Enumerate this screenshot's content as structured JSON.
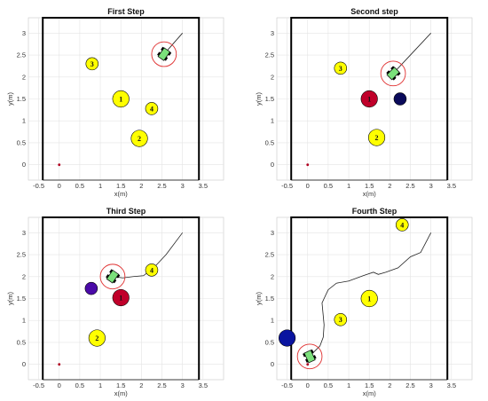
{
  "chart_data": [
    {
      "type": "scatter",
      "title": "First Step",
      "xlabel": "x(m)",
      "ylabel": "y(m)",
      "xlim": [
        -0.75,
        4.0
      ],
      "ylim": [
        -0.35,
        3.35
      ],
      "xticks": [
        -0.5,
        0,
        0.5,
        1,
        1.5,
        2,
        2.5,
        3,
        3.5
      ],
      "yticks": [
        0,
        0.5,
        1,
        1.5,
        2,
        2.5,
        3
      ],
      "grid": true,
      "workspace": {
        "x": [
          -0.4,
          3.4
        ],
        "y": [
          -0.35,
          3.35
        ]
      },
      "start_point": [
        0,
        0
      ],
      "obstacles": [
        {
          "label": "1",
          "x": 1.5,
          "y": 1.5,
          "r": 0.2,
          "color": "#ffff00"
        },
        {
          "label": "2",
          "x": 1.95,
          "y": 0.6,
          "r": 0.2,
          "color": "#ffff00"
        },
        {
          "label": "3",
          "x": 0.8,
          "y": 2.3,
          "r": 0.15,
          "color": "#ffff00"
        },
        {
          "label": "4",
          "x": 2.25,
          "y": 1.28,
          "r": 0.15,
          "color": "#ffff00"
        }
      ],
      "robot": {
        "x": 2.55,
        "y": 2.52,
        "heading_deg": 55,
        "safety_r": 0.3
      },
      "path": [
        [
          3.0,
          3.0
        ],
        [
          2.55,
          2.52
        ]
      ]
    },
    {
      "type": "scatter",
      "title": "Second step",
      "xlabel": "x(m)",
      "ylabel": "y(m)",
      "xlim": [
        -0.75,
        4.0
      ],
      "ylim": [
        -0.35,
        3.35
      ],
      "xticks": [
        -0.5,
        0,
        0.5,
        1,
        1.5,
        2,
        2.5,
        3,
        3.5
      ],
      "yticks": [
        0,
        0.5,
        1,
        1.5,
        2,
        2.5,
        3
      ],
      "grid": true,
      "workspace": {
        "x": [
          -0.4,
          3.4
        ],
        "y": [
          -0.35,
          3.35
        ]
      },
      "start_point": [
        0,
        0
      ],
      "obstacles": [
        {
          "label": "1",
          "x": 1.5,
          "y": 1.5,
          "r": 0.2,
          "color": "#c0002a"
        },
        {
          "label": "2",
          "x": 1.68,
          "y": 0.62,
          "r": 0.2,
          "color": "#ffff00"
        },
        {
          "label": "3",
          "x": 0.8,
          "y": 2.2,
          "r": 0.15,
          "color": "#ffff00"
        },
        {
          "label": "",
          "x": 2.25,
          "y": 1.5,
          "r": 0.15,
          "color": "#0a0a5a"
        }
      ],
      "robot": {
        "x": 2.08,
        "y": 2.08,
        "heading_deg": 45,
        "safety_r": 0.3
      },
      "path": [
        [
          3.0,
          3.0
        ],
        [
          2.08,
          2.08
        ]
      ]
    },
    {
      "type": "scatter",
      "title": "Third Step",
      "xlabel": "x(m)",
      "ylabel": "y(m)",
      "xlim": [
        -0.75,
        4.0
      ],
      "ylim": [
        -0.35,
        3.35
      ],
      "xticks": [
        -0.5,
        0,
        0.5,
        1,
        1.5,
        2,
        2.5,
        3,
        3.5
      ],
      "yticks": [
        0,
        0.5,
        1,
        1.5,
        2,
        2.5,
        3
      ],
      "grid": true,
      "workspace": {
        "x": [
          -0.4,
          3.4
        ],
        "y": [
          -0.35,
          3.35
        ]
      },
      "start_point": [
        0,
        0
      ],
      "obstacles": [
        {
          "label": "1",
          "x": 1.5,
          "y": 1.52,
          "r": 0.2,
          "color": "#c0002a"
        },
        {
          "label": "2",
          "x": 0.92,
          "y": 0.6,
          "r": 0.2,
          "color": "#ffff00"
        },
        {
          "label": "",
          "x": 0.78,
          "y": 1.73,
          "r": 0.15,
          "color": "#4a0aa8"
        },
        {
          "label": "4",
          "x": 2.25,
          "y": 2.15,
          "r": 0.15,
          "color": "#ffff00"
        }
      ],
      "robot": {
        "x": 1.3,
        "y": 2.0,
        "heading_deg": 55,
        "safety_r": 0.3
      },
      "path": [
        [
          3.0,
          3.0
        ],
        [
          2.6,
          2.5
        ],
        [
          2.3,
          2.2
        ],
        [
          2.05,
          2.02
        ],
        [
          1.8,
          2.0
        ],
        [
          1.55,
          1.97
        ],
        [
          1.3,
          2.0
        ]
      ]
    },
    {
      "type": "scatter",
      "title": "Fourth Step",
      "xlabel": "x(m)",
      "ylabel": "y(m)",
      "xlim": [
        -0.75,
        4.0
      ],
      "ylim": [
        -0.35,
        3.35
      ],
      "xticks": [
        -0.5,
        0,
        0.5,
        1,
        1.5,
        2,
        2.5,
        3,
        3.5
      ],
      "yticks": [
        0,
        0.5,
        1,
        1.5,
        2,
        2.5,
        3
      ],
      "grid": true,
      "workspace": {
        "x": [
          -0.4,
          3.4
        ],
        "y": [
          -0.35,
          3.35
        ]
      },
      "start_point": [
        0,
        0
      ],
      "obstacles": [
        {
          "label": "1",
          "x": 1.5,
          "y": 1.5,
          "r": 0.2,
          "color": "#ffff00"
        },
        {
          "label": "",
          "x": -0.5,
          "y": 0.6,
          "r": 0.2,
          "color": "#0a14a0"
        },
        {
          "label": "3",
          "x": 0.8,
          "y": 1.02,
          "r": 0.15,
          "color": "#ffff00"
        },
        {
          "label": "4",
          "x": 2.3,
          "y": 3.18,
          "r": 0.15,
          "color": "#ffff00"
        }
      ],
      "robot": {
        "x": 0.05,
        "y": 0.18,
        "heading_deg": 115,
        "safety_r": 0.3
      },
      "path": [
        [
          3.0,
          3.0
        ],
        [
          2.75,
          2.55
        ],
        [
          2.5,
          2.45
        ],
        [
          2.2,
          2.2
        ],
        [
          1.9,
          2.1
        ],
        [
          1.72,
          2.05
        ],
        [
          1.6,
          2.1
        ],
        [
          1.35,
          2.02
        ],
        [
          1.0,
          1.9
        ],
        [
          0.7,
          1.85
        ],
        [
          0.5,
          1.7
        ],
        [
          0.35,
          1.4
        ],
        [
          0.38,
          1.1
        ],
        [
          0.4,
          0.9
        ],
        [
          0.38,
          0.62
        ],
        [
          0.3,
          0.42
        ],
        [
          0.15,
          0.28
        ],
        [
          0.05,
          0.18
        ]
      ]
    }
  ]
}
